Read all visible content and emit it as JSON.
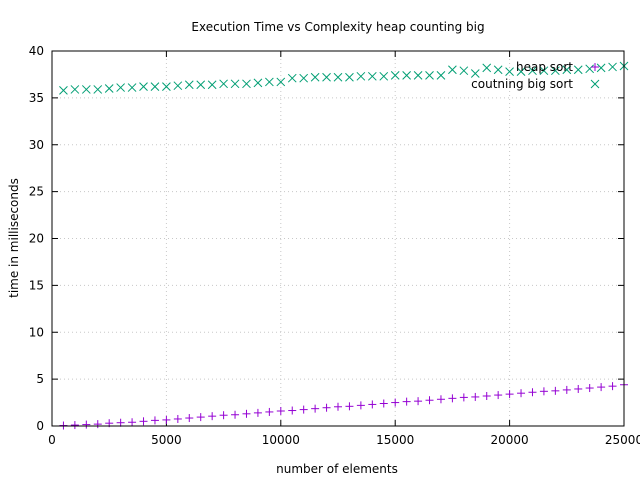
{
  "chart_data": {
    "type": "scatter",
    "title": "Execution Time vs Complexity heap counting big",
    "xlabel": "number of elements",
    "ylabel": "time in milliseconds",
    "xlim": [
      0,
      25000
    ],
    "ylim": [
      0,
      40
    ],
    "xticks": [
      0,
      5000,
      10000,
      15000,
      20000,
      25000
    ],
    "yticks": [
      0,
      5,
      10,
      15,
      20,
      25,
      30,
      35,
      40
    ],
    "grid": true,
    "legend_position": "top-right",
    "x": [
      500,
      1000,
      1500,
      2000,
      2500,
      3000,
      3500,
      4000,
      4500,
      5000,
      5500,
      6000,
      6500,
      7000,
      7500,
      8000,
      8500,
      9000,
      9500,
      10000,
      10500,
      11000,
      11500,
      12000,
      12500,
      13000,
      13500,
      14000,
      14500,
      15000,
      15500,
      16000,
      16500,
      17000,
      17500,
      18000,
      18500,
      19000,
      19500,
      20000,
      20500,
      21000,
      21500,
      22000,
      22500,
      23000,
      23500,
      24000,
      24500,
      25000
    ],
    "series": [
      {
        "name": "heap sort",
        "marker": "plus",
        "color": "#9400d3",
        "values": [
          0.05,
          0.1,
          0.15,
          0.2,
          0.3,
          0.35,
          0.4,
          0.5,
          0.6,
          0.65,
          0.75,
          0.85,
          0.95,
          1.05,
          1.15,
          1.2,
          1.3,
          1.4,
          1.5,
          1.6,
          1.65,
          1.75,
          1.85,
          1.95,
          2.05,
          2.1,
          2.2,
          2.3,
          2.4,
          2.5,
          2.6,
          2.65,
          2.75,
          2.85,
          2.95,
          3.05,
          3.1,
          3.2,
          3.3,
          3.4,
          3.5,
          3.6,
          3.7,
          3.75,
          3.85,
          3.95,
          4.05,
          4.15,
          4.25,
          4.4
        ]
      },
      {
        "name": "coutning big sort",
        "marker": "cross",
        "color": "#009e73",
        "values": [
          35.8,
          35.9,
          35.9,
          35.9,
          36.0,
          36.1,
          36.1,
          36.2,
          36.2,
          36.2,
          36.3,
          36.4,
          36.4,
          36.4,
          36.5,
          36.5,
          36.5,
          36.6,
          36.7,
          36.7,
          37.1,
          37.1,
          37.2,
          37.2,
          37.2,
          37.2,
          37.3,
          37.3,
          37.3,
          37.4,
          37.4,
          37.4,
          37.4,
          37.4,
          38.0,
          37.9,
          37.6,
          38.2,
          38.0,
          37.8,
          37.8,
          37.9,
          37.9,
          37.9,
          38.0,
          38.0,
          38.1,
          38.2,
          38.3,
          38.4
        ]
      }
    ]
  }
}
